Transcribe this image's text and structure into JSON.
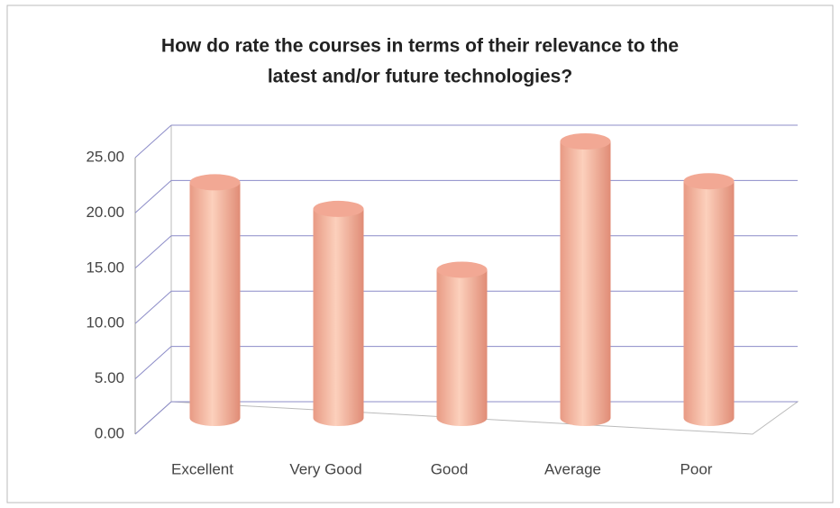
{
  "chart_data": {
    "type": "bar3d",
    "title": [
      "How do rate the courses in terms of their relevance to the",
      "latest and/or future technologies?"
    ],
    "categories": [
      "Excellent",
      "Very Good",
      "Good",
      "Average",
      "Poor"
    ],
    "values": [
      21.3,
      18.9,
      13.4,
      25.0,
      21.4
    ],
    "color": "#f2a894",
    "ylim": [
      0,
      25
    ],
    "yticks": [
      {
        "value": 0,
        "label": "0.00"
      },
      {
        "value": 5,
        "label": "5.00"
      },
      {
        "value": 10,
        "label": "10.00"
      },
      {
        "value": 15,
        "label": "15.00"
      },
      {
        "value": 20,
        "label": "20.00"
      },
      {
        "value": 25,
        "label": "25.00"
      }
    ],
    "grid": true
  }
}
